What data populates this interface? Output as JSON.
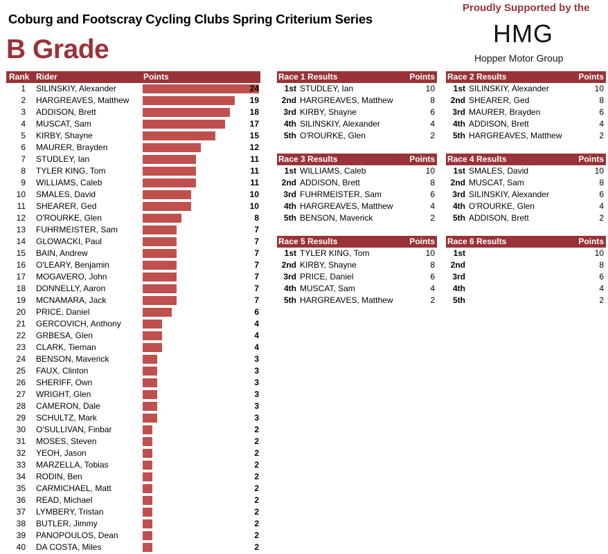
{
  "header": {
    "title": "Coburg and Footscray Cycling Clubs Spring Criterium Series",
    "grade": "B Grade"
  },
  "sponsor": {
    "tagline": "Proudly Supported by the",
    "logo": "HMG",
    "name": "Hopper Motor Group"
  },
  "colors": {
    "accent": "#9c3238",
    "header_bg": "#993337",
    "bar": "#c0504d"
  },
  "chart_data": {
    "type": "bar",
    "orientation": "horizontal",
    "columns": [
      "Rank",
      "Rider",
      "Points"
    ],
    "categories": [
      "SILINSKIY, Alexander",
      "HARGREAVES, Matthew",
      "ADDISON, Brett",
      "MUSCAT, Sam",
      "KIRBY, Shayne",
      "MAURER, Brayden",
      "STUDLEY, Ian",
      "TYLER KING, Tom",
      "WILLIAMS, Caleb",
      "SMALES, David",
      "SHEARER, Ged",
      "O'ROURKE, Glen",
      "FUHRMEISTER, Sam",
      "GLOWACKI, Paul",
      "BAIN, Andrew",
      "O'LEARY, Benjamin",
      "MOGAVERO, John",
      "DONNELLY, Aaron",
      "MCNAMARA, Jack",
      "PRICE, Daniel",
      "GERCOVICH, Anthony",
      "GRBESA, Glen",
      "CLARK, Tiernan",
      "BENSON, Maverick",
      "FAUX, Clinton",
      "SHERIFF, Own",
      "WRIGHT, Glen",
      "CAMERON, Dale",
      "SCHULTZ, Mark",
      "O'SULLIVAN, Finbar",
      "MOSES, Steven",
      "YEOH, Jason",
      "MARZELLA, Tobias",
      "RODIN, Ben",
      "CARMICHAEL, Matt",
      "READ, Michael",
      "LYMBERY, Tristan",
      "BUTLER, Jimmy",
      "PANOPOULOS, Dean",
      "DA COSTA, Miles"
    ],
    "ranks": [
      "1",
      "2",
      "3",
      "4",
      "5",
      "6",
      "7",
      "8",
      "9",
      "10",
      "11",
      "12",
      "13",
      "14",
      "15",
      "16",
      "17",
      "18",
      "19",
      "20",
      "21",
      "22",
      "23",
      "24",
      "25",
      "26",
      "27",
      "28",
      "29",
      "30",
      "31",
      "32",
      "33",
      "34",
      "35",
      "36",
      "37",
      "38",
      "39",
      "40"
    ],
    "values": [
      24,
      19,
      18,
      17,
      15,
      12,
      11,
      11,
      11,
      10,
      10,
      8,
      7,
      7,
      7,
      7,
      7,
      7,
      7,
      6,
      4,
      4,
      4,
      3,
      3,
      3,
      3,
      3,
      3,
      2,
      2,
      2,
      2,
      2,
      2,
      2,
      2,
      2,
      2,
      2
    ],
    "xlim": [
      0,
      24
    ]
  },
  "races": [
    {
      "title": "Race 1 Results",
      "points_label": "Points",
      "rows": [
        {
          "place": "1st",
          "rider": "STUDLEY, Ian",
          "points": "10"
        },
        {
          "place": "2nd",
          "rider": "HARGREAVES, Matthew",
          "points": "8"
        },
        {
          "place": "3rd",
          "rider": "KIRBY, Shayne",
          "points": "6"
        },
        {
          "place": "4th",
          "rider": "SILINSKIY, Alexander",
          "points": "4"
        },
        {
          "place": "5th",
          "rider": "O'ROURKE, Glen",
          "points": "2"
        }
      ]
    },
    {
      "title": "Race 2 Results",
      "points_label": "Points",
      "rows": [
        {
          "place": "1st",
          "rider": "SILINSKIY, Alexander",
          "points": "10"
        },
        {
          "place": "2nd",
          "rider": "SHEARER, Ged",
          "points": "8"
        },
        {
          "place": "3rd",
          "rider": "MAURER, Brayden",
          "points": "6"
        },
        {
          "place": "4th",
          "rider": "ADDISON, Brett",
          "points": "4"
        },
        {
          "place": "5th",
          "rider": "HARGREAVES, Matthew",
          "points": "2"
        }
      ]
    },
    {
      "title": "Race 3 Results",
      "points_label": "Points",
      "rows": [
        {
          "place": "1st",
          "rider": "WILLIAMS, Caleb",
          "points": "10"
        },
        {
          "place": "2nd",
          "rider": "ADDISON, Brett",
          "points": "8"
        },
        {
          "place": "3rd",
          "rider": "FUHRMEISTER, Sam",
          "points": "6"
        },
        {
          "place": "4th",
          "rider": "HARGREAVES, Matthew",
          "points": "4"
        },
        {
          "place": "5th",
          "rider": "BENSON, Maverick",
          "points": "2"
        }
      ]
    },
    {
      "title": "Race 4 Results",
      "points_label": "Points",
      "rows": [
        {
          "place": "1st",
          "rider": "SMALES, David",
          "points": "10"
        },
        {
          "place": "2nd",
          "rider": "MUSCAT, Sam",
          "points": "8"
        },
        {
          "place": "3rd",
          "rider": "SILINSKIY, Alexander",
          "points": "6"
        },
        {
          "place": "4th",
          "rider": "O'ROURKE, Glen",
          "points": "4"
        },
        {
          "place": "5th",
          "rider": "ADDISON, Brett",
          "points": "2"
        }
      ]
    },
    {
      "title": "Race 5 Results",
      "points_label": "Points",
      "rows": [
        {
          "place": "1st",
          "rider": "TYLER KING, Tom",
          "points": "10"
        },
        {
          "place": "2nd",
          "rider": "KIRBY, Shayne",
          "points": "8"
        },
        {
          "place": "3rd",
          "rider": "PRICE, Daniel",
          "points": "6"
        },
        {
          "place": "4th",
          "rider": "MUSCAT, Sam",
          "points": "4"
        },
        {
          "place": "5th",
          "rider": "HARGREAVES, Matthew",
          "points": "2"
        }
      ]
    },
    {
      "title": "Race 6 Results",
      "points_label": "Points",
      "rows": [
        {
          "place": "1st",
          "rider": "",
          "points": "10"
        },
        {
          "place": "2nd",
          "rider": "",
          "points": "8"
        },
        {
          "place": "3rd",
          "rider": "",
          "points": "6"
        },
        {
          "place": "4th",
          "rider": "",
          "points": "4"
        },
        {
          "place": "5th",
          "rider": "",
          "points": "2"
        }
      ]
    }
  ]
}
